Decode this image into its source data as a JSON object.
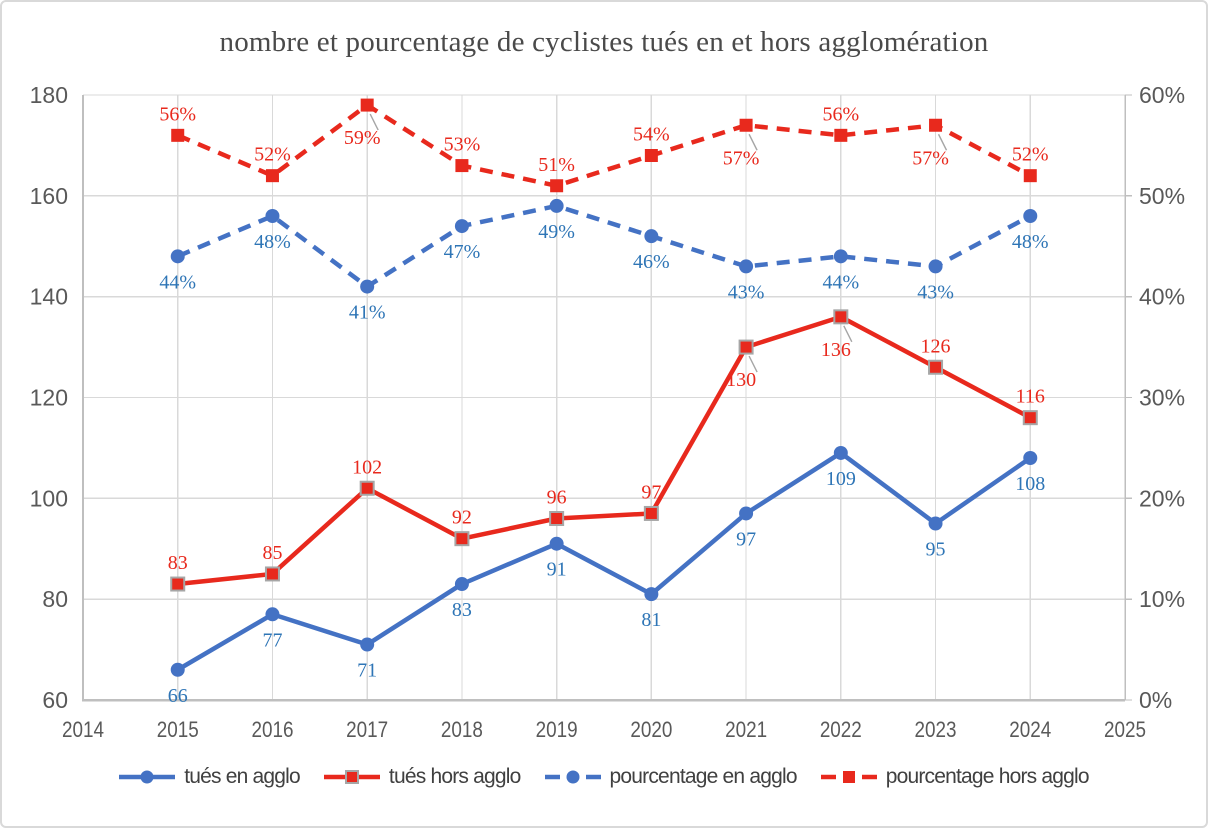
{
  "chart_data": {
    "type": "line",
    "title": "nombre et pourcentage de cyclistes tués en et hors agglomération",
    "x": [
      2015,
      2016,
      2017,
      2018,
      2019,
      2020,
      2021,
      2022,
      2023,
      2024
    ],
    "x_axis": {
      "min": 2014,
      "max": 2025,
      "tick_labels": [
        "2014",
        "2015",
        "2016",
        "2017",
        "2018",
        "2019",
        "2020",
        "2021",
        "2022",
        "2023",
        "2024",
        "2025"
      ]
    },
    "left_axis": {
      "min": 60,
      "max": 180,
      "step": 20,
      "tick_labels": [
        "60",
        "80",
        "100",
        "120",
        "140",
        "160",
        "180"
      ]
    },
    "right_axis": {
      "min": 0,
      "max": 60,
      "step": 10,
      "tick_labels": [
        "0%",
        "10%",
        "20%",
        "30%",
        "40%",
        "50%",
        "60%"
      ]
    },
    "grid": true,
    "legend_position": "bottom",
    "series": [
      {
        "id": "tues-en-agglo",
        "name": "tués en agglo",
        "axis": "left",
        "line": "solid",
        "marker": "circle",
        "color": "#4472C4",
        "label_color": "#2E75B6",
        "marker_border": null,
        "values": [
          66,
          77,
          71,
          83,
          91,
          81,
          97,
          109,
          95,
          108
        ],
        "labels": [
          "66",
          "77",
          "71",
          "83",
          "91",
          "81",
          "97",
          "109",
          "95",
          "108"
        ],
        "label_placements": [
          "below",
          "below",
          "below",
          "below",
          "below",
          "below",
          "below",
          "below",
          "below",
          "below"
        ]
      },
      {
        "id": "tues-hors-agglo",
        "name": "tués hors agglo",
        "axis": "left",
        "line": "solid",
        "marker": "square",
        "color": "#E8291D",
        "label_color": "#E8291D",
        "marker_border": "#A6A6A6",
        "values": [
          83,
          85,
          102,
          92,
          96,
          97,
          130,
          136,
          126,
          116
        ],
        "labels": [
          "83",
          "85",
          "102",
          "92",
          "96",
          "97",
          "130",
          "136",
          "126",
          "116"
        ],
        "label_placements": [
          "above",
          "above",
          "above",
          "above",
          "above",
          "above",
          "below-leader",
          "below-leader",
          "above",
          "above"
        ]
      },
      {
        "id": "pourcentage-en-agglo",
        "name": "pourcentage en agglo",
        "axis": "right",
        "line": "dashed",
        "marker": "circle",
        "color": "#4472C4",
        "label_color": "#2E75B6",
        "marker_border": null,
        "values": [
          44,
          48,
          41,
          47,
          49,
          46,
          43,
          44,
          43,
          48
        ],
        "labels": [
          "44%",
          "48%",
          "41%",
          "47%",
          "49%",
          "46%",
          "43%",
          "44%",
          "43%",
          "48%"
        ],
        "label_placements": [
          "below",
          "below",
          "below",
          "below",
          "below",
          "below",
          "below",
          "below",
          "below",
          "below"
        ]
      },
      {
        "id": "pourcentage-hors-agglo",
        "name": "pourcentage hors agglo",
        "axis": "right",
        "line": "dashed",
        "marker": "square",
        "color": "#E8291D",
        "label_color": "#E8291D",
        "marker_border": null,
        "values": [
          56,
          52,
          59,
          53,
          51,
          54,
          57,
          56,
          57,
          52
        ],
        "labels": [
          "56%",
          "52%",
          "59%",
          "53%",
          "51%",
          "54%",
          "57%",
          "56%",
          "57%",
          "52%"
        ],
        "label_placements": [
          "above",
          "above",
          "below-leader",
          "above",
          "above",
          "above",
          "below-leader",
          "above",
          "below-leader",
          "above"
        ]
      }
    ],
    "colors": {
      "grid": "#D9D9D9",
      "axis_line": "#BFBFBF",
      "axis_text": "#595959",
      "title_text": "#4A4A4A",
      "legend_text": "#404040",
      "leader_line": "#A6A6A6"
    }
  }
}
